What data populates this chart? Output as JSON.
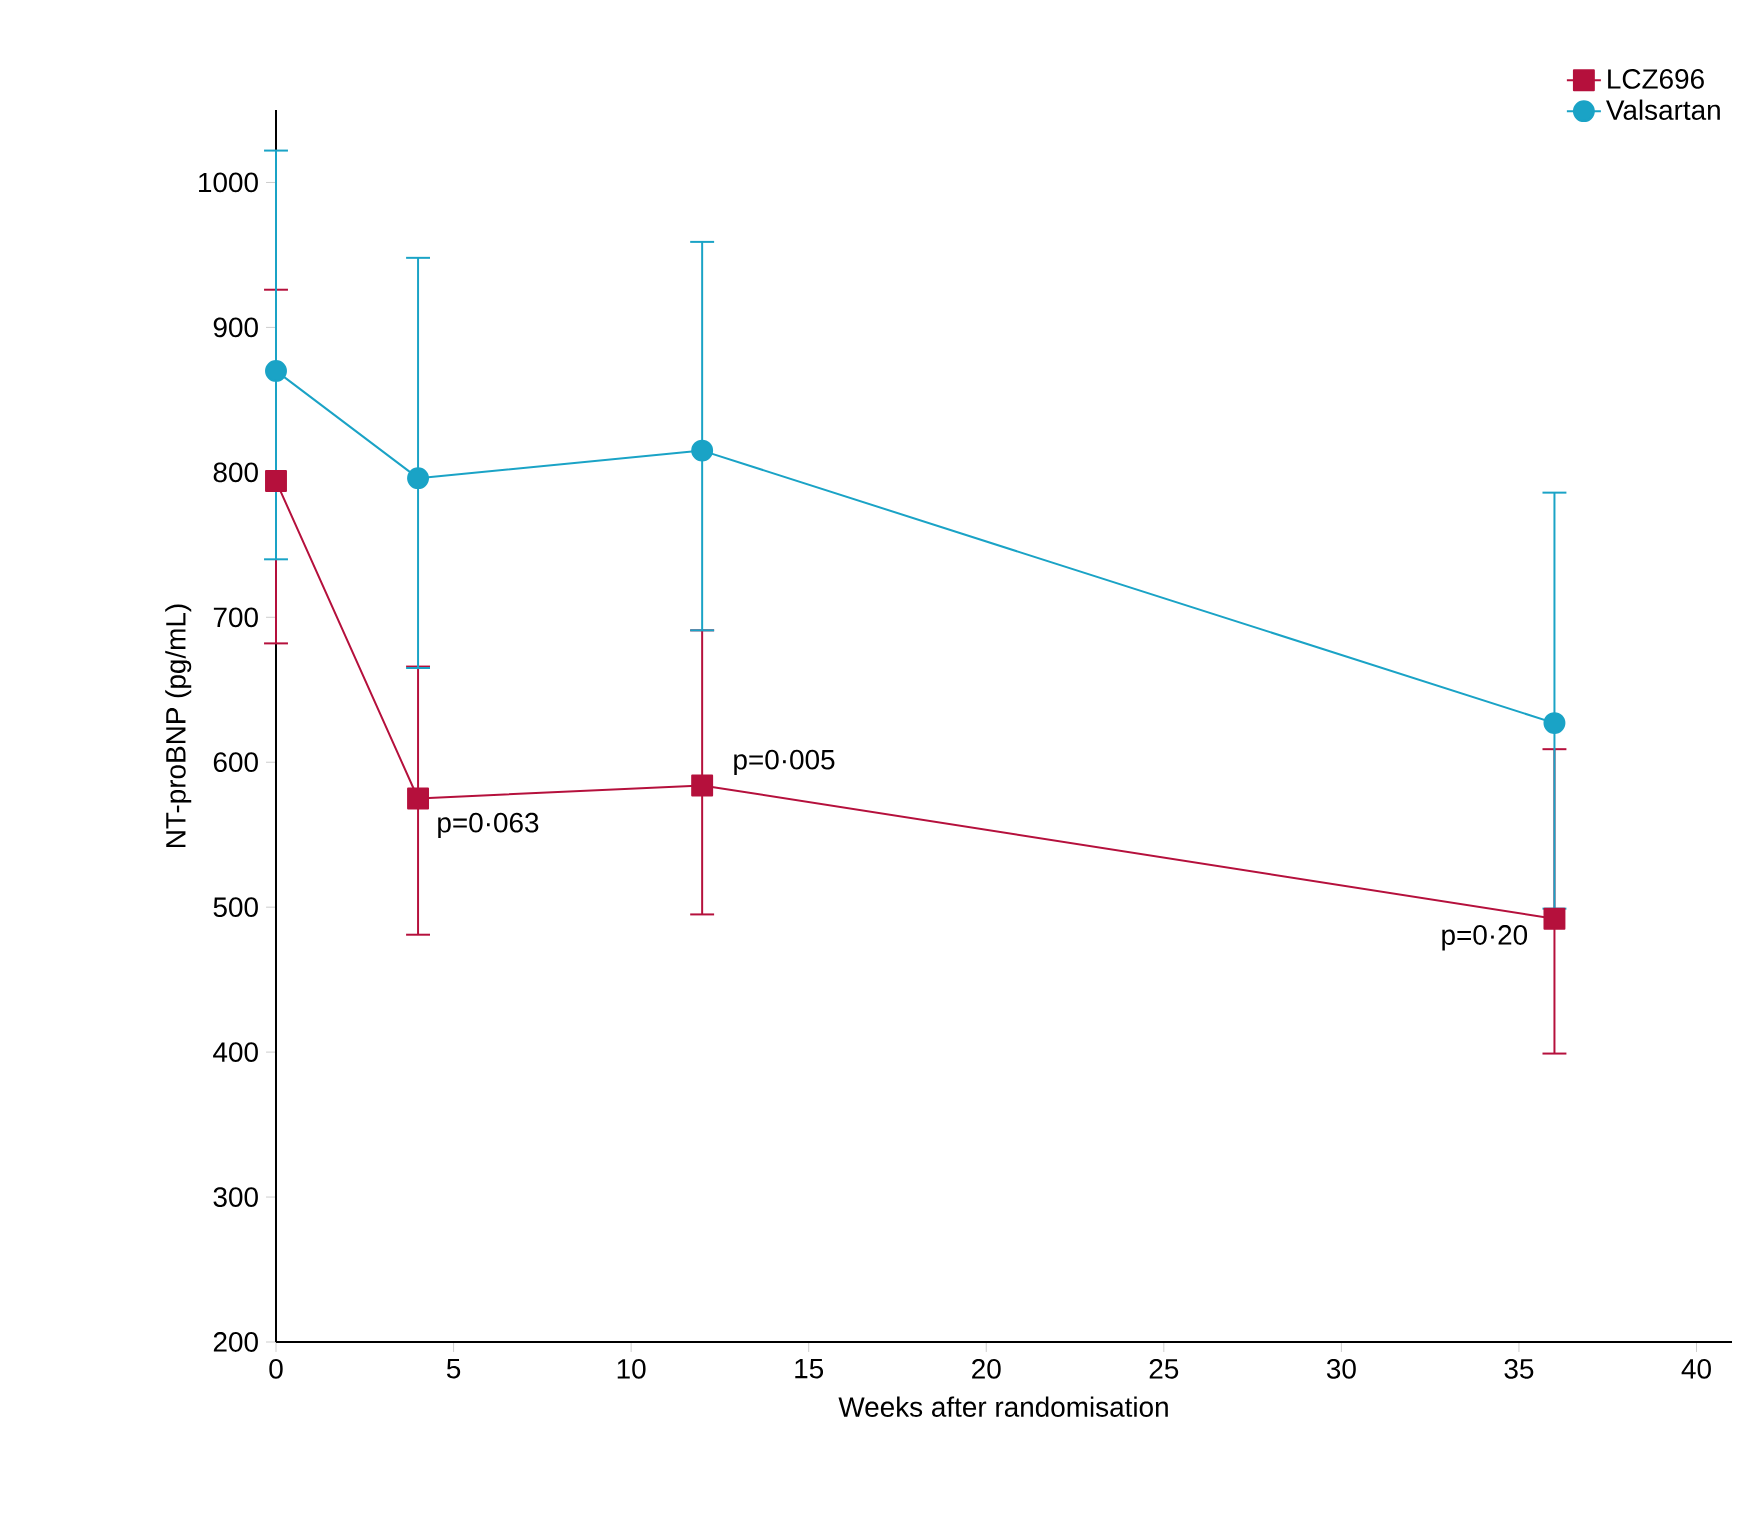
{
  "chart_data": {
    "type": "line",
    "xlabel": "Weeks after randomisation",
    "ylabel": "NT-proBNP (pg/mL)",
    "xlim": [
      0,
      41
    ],
    "ylim": [
      200,
      1050
    ],
    "xticks": [
      0,
      5,
      10,
      15,
      20,
      25,
      30,
      35,
      40
    ],
    "yticks": [
      200,
      300,
      400,
      500,
      600,
      700,
      800,
      900,
      1000
    ],
    "grid": false,
    "legend": "top right",
    "line_style": "solid",
    "series": [
      {
        "name": "LCZ696",
        "color": "#b5103c",
        "marker": "square",
        "x": [
          0,
          4,
          12,
          36
        ],
        "values": [
          794,
          575,
          584,
          492
        ],
        "errors": [
          [
            682,
            926
          ],
          [
            481,
            666
          ],
          [
            495,
            691
          ],
          [
            399,
            609
          ]
        ]
      },
      {
        "name": "Valsartan",
        "color": "#1aa3c6",
        "marker": "circle",
        "x": [
          0,
          4,
          12,
          36
        ],
        "values": [
          870,
          796,
          815,
          627
        ],
        "errors": [
          [
            740,
            1022
          ],
          [
            665,
            948
          ],
          [
            691,
            959
          ],
          [
            499,
            786
          ]
        ]
      }
    ],
    "annotations": [
      {
        "text": "p=0·063",
        "x": 4,
        "y": 575
      },
      {
        "text": "p=0·005",
        "x": 12,
        "y": 584
      },
      {
        "text": "p=0·20",
        "x": 36,
        "y": 492
      }
    ]
  }
}
